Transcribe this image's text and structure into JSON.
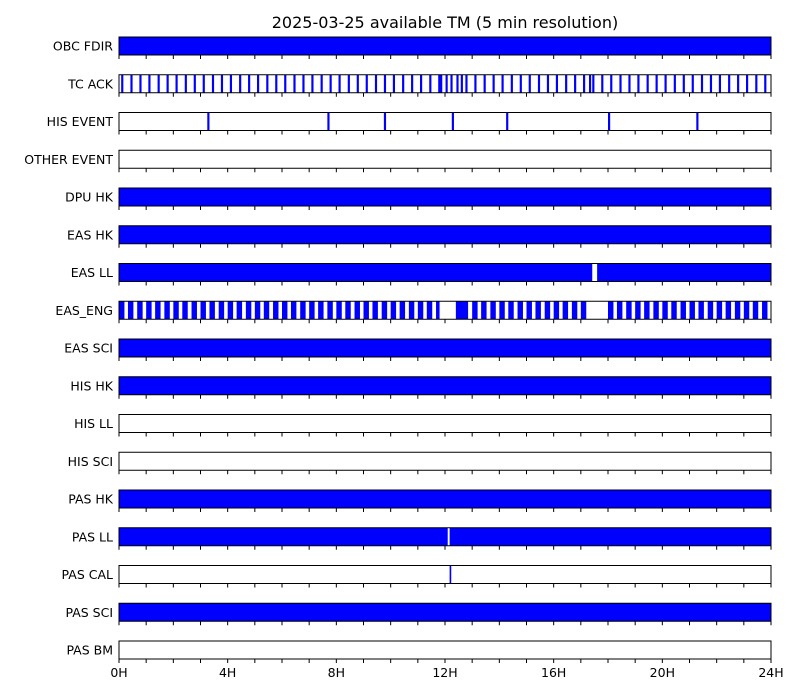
{
  "chart_data": {
    "type": "timeline",
    "title": "2025-03-25 available TM (5 min resolution)",
    "x_unit": "hours",
    "xlim": [
      0,
      24
    ],
    "x_tick_labels": [
      "0H",
      "4H",
      "8H",
      "12H",
      "16H",
      "20H",
      "24H"
    ],
    "x_tick_values": [
      0,
      4,
      8,
      12,
      16,
      20,
      24
    ],
    "grid": false,
    "fill_color": "#0000ff",
    "rows": [
      {
        "label": "OBC FDIR",
        "intervals": [
          [
            0,
            24
          ]
        ]
      },
      {
        "label": "TC ACK",
        "intervals": [
          [
            0.08,
            0.16
          ],
          [
            0.42,
            0.5
          ],
          [
            0.75,
            0.83
          ],
          [
            1.08,
            1.16
          ],
          [
            1.42,
            1.5
          ],
          [
            1.75,
            1.83
          ],
          [
            2.08,
            2.16
          ],
          [
            2.42,
            2.5
          ],
          [
            2.75,
            2.83
          ],
          [
            3.08,
            3.16
          ],
          [
            3.42,
            3.5
          ],
          [
            3.75,
            3.83
          ],
          [
            4.08,
            4.16
          ],
          [
            4.42,
            4.5
          ],
          [
            4.75,
            4.83
          ],
          [
            5.08,
            5.16
          ],
          [
            5.42,
            5.5
          ],
          [
            5.75,
            5.83
          ],
          [
            6.08,
            6.16
          ],
          [
            6.42,
            6.5
          ],
          [
            6.75,
            6.83
          ],
          [
            7.08,
            7.16
          ],
          [
            7.42,
            7.5
          ],
          [
            7.75,
            7.83
          ],
          [
            8.08,
            8.16
          ],
          [
            8.42,
            8.5
          ],
          [
            8.75,
            8.83
          ],
          [
            9.08,
            9.16
          ],
          [
            9.42,
            9.5
          ],
          [
            9.75,
            9.83
          ],
          [
            10.08,
            10.16
          ],
          [
            10.42,
            10.5
          ],
          [
            10.75,
            10.83
          ],
          [
            11.08,
            11.16
          ],
          [
            11.42,
            11.5
          ],
          [
            11.75,
            11.9
          ],
          [
            12.02,
            12.1
          ],
          [
            12.2,
            12.28
          ],
          [
            12.42,
            12.5
          ],
          [
            12.58,
            12.66
          ],
          [
            12.75,
            12.83
          ],
          [
            13.08,
            13.16
          ],
          [
            13.42,
            13.5
          ],
          [
            13.75,
            13.83
          ],
          [
            14.08,
            14.16
          ],
          [
            14.42,
            14.5
          ],
          [
            14.75,
            14.83
          ],
          [
            15.08,
            15.16
          ],
          [
            15.42,
            15.5
          ],
          [
            15.75,
            15.83
          ],
          [
            16.08,
            16.16
          ],
          [
            16.42,
            16.5
          ],
          [
            16.75,
            16.83
          ],
          [
            17.08,
            17.16
          ],
          [
            17.3,
            17.38
          ],
          [
            17.42,
            17.5
          ],
          [
            17.75,
            17.83
          ],
          [
            18.08,
            18.16
          ],
          [
            18.42,
            18.5
          ],
          [
            18.75,
            18.83
          ],
          [
            19.08,
            19.16
          ],
          [
            19.42,
            19.5
          ],
          [
            19.75,
            19.83
          ],
          [
            20.08,
            20.16
          ],
          [
            20.42,
            20.5
          ],
          [
            20.75,
            20.83
          ],
          [
            21.08,
            21.16
          ],
          [
            21.42,
            21.5
          ],
          [
            21.75,
            21.83
          ],
          [
            22.08,
            22.16
          ],
          [
            22.42,
            22.5
          ],
          [
            22.75,
            22.83
          ],
          [
            23.08,
            23.16
          ],
          [
            23.42,
            23.5
          ],
          [
            23.75,
            23.83
          ]
        ]
      },
      {
        "label": "HIS EVENT",
        "intervals": [
          [
            3.25,
            3.33
          ],
          [
            7.67,
            7.75
          ],
          [
            9.75,
            9.83
          ],
          [
            12.25,
            12.33
          ],
          [
            14.25,
            14.33
          ],
          [
            18,
            18.08
          ],
          [
            21.25,
            21.33
          ]
        ]
      },
      {
        "label": "OTHER EVENT",
        "intervals": []
      },
      {
        "label": "DPU HK",
        "intervals": [
          [
            0,
            24
          ]
        ]
      },
      {
        "label": "EAS HK",
        "intervals": [
          [
            0,
            24
          ]
        ]
      },
      {
        "label": "EAS LL",
        "intervals": [
          [
            0,
            17.42
          ],
          [
            17.6,
            24
          ]
        ]
      },
      {
        "label": "EAS_ENG",
        "intervals": [
          [
            0,
            0.2
          ],
          [
            0.33,
            0.53
          ],
          [
            0.67,
            0.87
          ],
          [
            1,
            1.2
          ],
          [
            1.33,
            1.53
          ],
          [
            1.67,
            1.87
          ],
          [
            2,
            2.2
          ],
          [
            2.33,
            2.53
          ],
          [
            2.67,
            2.87
          ],
          [
            3,
            3.2
          ],
          [
            3.33,
            3.53
          ],
          [
            3.67,
            3.87
          ],
          [
            4,
            4.2
          ],
          [
            4.33,
            4.53
          ],
          [
            4.67,
            4.87
          ],
          [
            5,
            5.2
          ],
          [
            5.33,
            5.53
          ],
          [
            5.67,
            5.87
          ],
          [
            6,
            6.2
          ],
          [
            6.33,
            6.53
          ],
          [
            6.67,
            6.87
          ],
          [
            7,
            7.2
          ],
          [
            7.33,
            7.53
          ],
          [
            7.67,
            7.87
          ],
          [
            8,
            8.2
          ],
          [
            8.33,
            8.53
          ],
          [
            8.67,
            8.87
          ],
          [
            9,
            9.2
          ],
          [
            9.33,
            9.53
          ],
          [
            9.67,
            9.87
          ],
          [
            10,
            10.2
          ],
          [
            10.33,
            10.53
          ],
          [
            10.67,
            10.87
          ],
          [
            11,
            11.2
          ],
          [
            11.33,
            11.53
          ],
          [
            11.67,
            11.8
          ],
          [
            12.4,
            12.85
          ],
          [
            13,
            13.2
          ],
          [
            13.33,
            13.53
          ],
          [
            13.67,
            13.87
          ],
          [
            14,
            14.2
          ],
          [
            14.33,
            14.53
          ],
          [
            14.67,
            14.87
          ],
          [
            15,
            15.2
          ],
          [
            15.33,
            15.53
          ],
          [
            15.67,
            15.87
          ],
          [
            16,
            16.2
          ],
          [
            16.33,
            16.53
          ],
          [
            16.67,
            16.87
          ],
          [
            17,
            17.2
          ],
          [
            18,
            18.2
          ],
          [
            18.33,
            18.53
          ],
          [
            18.67,
            18.87
          ],
          [
            19,
            19.2
          ],
          [
            19.33,
            19.53
          ],
          [
            19.67,
            19.87
          ],
          [
            20,
            20.2
          ],
          [
            20.33,
            20.53
          ],
          [
            20.67,
            20.87
          ],
          [
            21,
            21.2
          ],
          [
            21.33,
            21.53
          ],
          [
            21.67,
            21.87
          ],
          [
            22,
            22.2
          ],
          [
            22.33,
            22.53
          ],
          [
            22.67,
            22.87
          ],
          [
            23,
            23.2
          ],
          [
            23.33,
            23.53
          ],
          [
            23.67,
            23.87
          ]
        ]
      },
      {
        "label": "EAS SCI",
        "intervals": [
          [
            0,
            24
          ]
        ]
      },
      {
        "label": "HIS HK",
        "intervals": [
          [
            0,
            24
          ]
        ]
      },
      {
        "label": "HIS LL",
        "intervals": []
      },
      {
        "label": "HIS SCI",
        "intervals": []
      },
      {
        "label": "PAS HK",
        "intervals": [
          [
            0,
            24
          ]
        ]
      },
      {
        "label": "PAS LL",
        "intervals": [
          [
            0,
            12.1
          ],
          [
            12.17,
            24
          ]
        ]
      },
      {
        "label": "PAS CAL",
        "intervals": [
          [
            12.17,
            12.23
          ]
        ]
      },
      {
        "label": "PAS SCI",
        "intervals": [
          [
            0,
            24
          ]
        ]
      },
      {
        "label": "PAS BM",
        "intervals": []
      }
    ]
  }
}
